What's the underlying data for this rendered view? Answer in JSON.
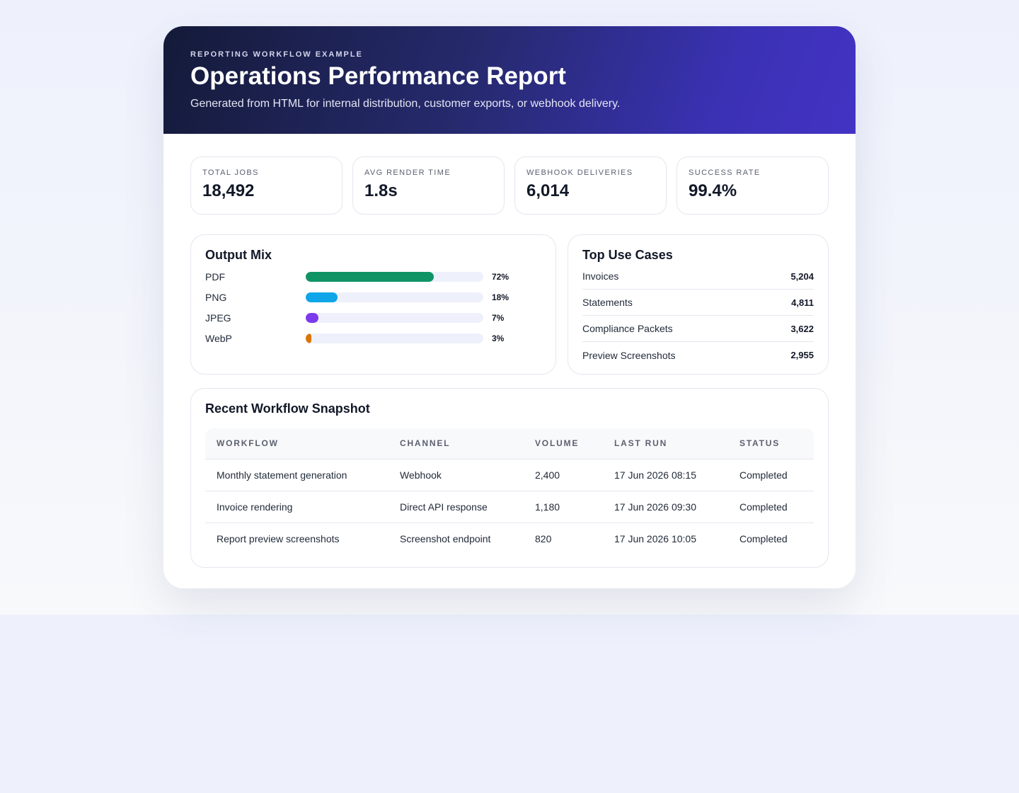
{
  "header": {
    "eyebrow": "REPORTING WORKFLOW EXAMPLE",
    "title": "Operations Performance Report",
    "subtitle": "Generated from HTML for internal distribution, customer exports, or webhook delivery."
  },
  "kpis": [
    {
      "label": "TOTAL JOBS",
      "value": "18,492"
    },
    {
      "label": "AVG RENDER TIME",
      "value": "1.8s"
    },
    {
      "label": "WEBHOOK DELIVERIES",
      "value": "6,014"
    },
    {
      "label": "SUCCESS RATE",
      "value": "99.4%"
    }
  ],
  "output_mix": {
    "title": "Output Mix",
    "items": [
      {
        "label": "PDF",
        "pct_text": "72%",
        "value": 72,
        "color": "#0f9466"
      },
      {
        "label": "PNG",
        "pct_text": "18%",
        "value": 18,
        "color": "#0ea5e9"
      },
      {
        "label": "JPEG",
        "pct_text": "7%",
        "value": 7,
        "color": "#7c3aed"
      },
      {
        "label": "WebP",
        "pct_text": "3%",
        "value": 3,
        "color": "#d97706"
      }
    ]
  },
  "top_use_cases": {
    "title": "Top Use Cases",
    "items": [
      {
        "name": "Invoices",
        "value": "5,204"
      },
      {
        "name": "Statements",
        "value": "4,811"
      },
      {
        "name": "Compliance Packets",
        "value": "3,622"
      },
      {
        "name": "Preview Screenshots",
        "value": "2,955"
      }
    ]
  },
  "snapshot": {
    "title": "Recent Workflow Snapshot",
    "columns": [
      "WORKFLOW",
      "CHANNEL",
      "VOLUME",
      "LAST RUN",
      "STATUS"
    ],
    "rows": [
      [
        "Monthly statement generation",
        "Webhook",
        "2,400",
        "17 Jun 2026 08:15",
        "Completed"
      ],
      [
        "Invoice rendering",
        "Direct API response",
        "1,180",
        "17 Jun 2026 09:30",
        "Completed"
      ],
      [
        "Report preview screenshots",
        "Screenshot endpoint",
        "820",
        "17 Jun 2026 10:05",
        "Completed"
      ]
    ]
  }
}
